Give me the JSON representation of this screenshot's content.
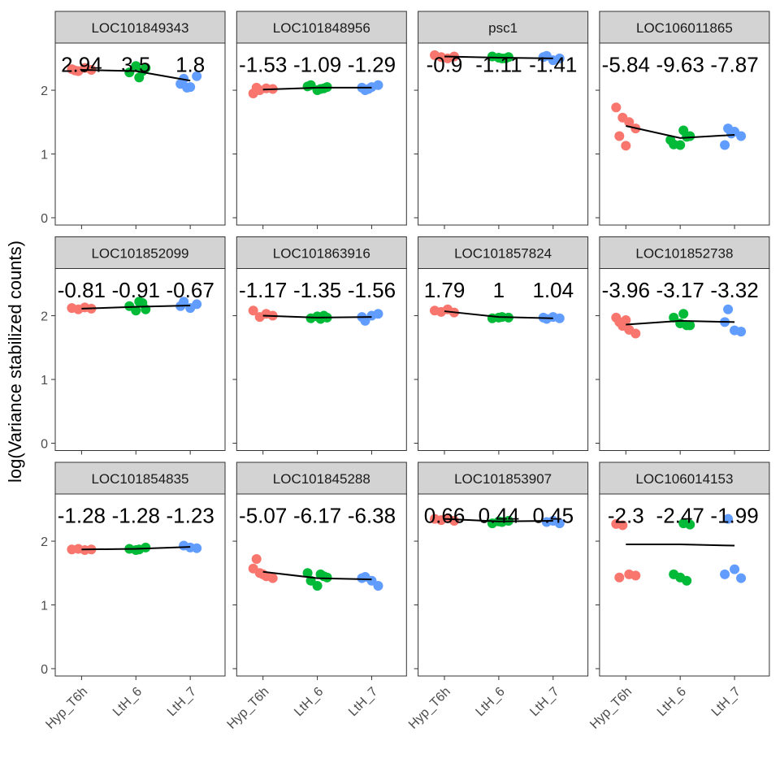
{
  "y_label": "log(Variance stabilized counts)",
  "categories": [
    "Hyp_T6h",
    "LtH_6",
    "LtH_7"
  ],
  "colors": [
    "#F8766D",
    "#00BA38",
    "#619CFF"
  ],
  "ylim": [
    -0.115,
    2.74
  ],
  "yticks": [
    0,
    1,
    2
  ],
  "chart_data": [
    {
      "type": "strip",
      "title": "LOC101849343",
      "annotations": [
        2.94,
        3.5,
        1.8
      ],
      "groups": [
        [
          2.33,
          2.3,
          2.35,
          2.32,
          2.31
        ],
        [
          2.2,
          2.35,
          2.28,
          2.38,
          2.3
        ],
        [
          2.18,
          2.05,
          2.22,
          2.1,
          2.04
        ]
      ],
      "mean": [
        2.32,
        2.3,
        2.15
      ]
    },
    {
      "type": "strip",
      "title": "LOC101848956",
      "annotations": [
        -1.53,
        -1.09,
        -1.29
      ],
      "groups": [
        [
          1.95,
          2.0,
          2.03,
          2.02,
          2.04
        ],
        [
          2.02,
          2.05,
          2.08,
          2.0,
          2.03,
          2.06
        ],
        [
          2.0,
          2.05,
          2.08,
          2.04,
          2.02
        ]
      ],
      "mean": [
        2.01,
        2.04,
        2.04
      ]
    },
    {
      "type": "strip",
      "title": "psc1",
      "annotations": [
        -0.9,
        -1.11,
        -1.41
      ],
      "groups": [
        [
          2.55,
          2.52,
          2.5,
          2.53
        ],
        [
          2.5,
          2.52,
          2.53,
          2.51,
          2.5
        ],
        [
          2.54,
          2.47,
          2.5,
          2.52
        ]
      ],
      "mean": [
        2.53,
        2.51,
        2.5
      ]
    },
    {
      "type": "strip",
      "title": "LOC106011865",
      "annotations": [
        -5.84,
        -9.63,
        -7.87
      ],
      "groups": [
        [
          1.73,
          1.57,
          1.5,
          1.4,
          1.28,
          1.13
        ],
        [
          1.37,
          1.28,
          1.15,
          1.14,
          1.27,
          1.22
        ],
        [
          1.4,
          1.35,
          1.28,
          1.14,
          1.32
        ]
      ],
      "mean": [
        1.44,
        1.25,
        1.3
      ]
    },
    {
      "type": "strip",
      "title": "LOC101852099",
      "annotations": [
        -0.81,
        -0.91,
        -0.67
      ],
      "groups": [
        [
          2.12,
          2.1,
          2.13,
          2.11
        ],
        [
          2.22,
          2.1,
          2.15,
          2.08,
          2.2
        ],
        [
          2.22,
          2.12,
          2.18,
          2.15
        ]
      ],
      "mean": [
        2.11,
        2.14,
        2.16
      ]
    },
    {
      "type": "strip",
      "title": "LOC101863916",
      "annotations": [
        -1.17,
        -1.35,
        -1.56
      ],
      "groups": [
        [
          2.08,
          1.98,
          2.03,
          2.0
        ],
        [
          1.95,
          1.97,
          1.96,
          1.99,
          2.0
        ],
        [
          1.92,
          2.0,
          2.03,
          1.98
        ]
      ],
      "mean": [
        2.0,
        1.97,
        1.98
      ]
    },
    {
      "type": "strip",
      "title": "LOC101857824",
      "annotations": [
        1.79,
        1,
        1.04
      ],
      "groups": [
        [
          2.08,
          2.06,
          2.1,
          2.05
        ],
        [
          1.98,
          1.97,
          1.96,
          1.97
        ],
        [
          1.95,
          1.98,
          1.96,
          1.97
        ]
      ],
      "mean": [
        2.07,
        1.98,
        1.96
      ]
    },
    {
      "type": "strip",
      "title": "LOC101852738",
      "annotations": [
        -3.96,
        -3.17,
        -3.32
      ],
      "groups": [
        [
          1.97,
          1.84,
          1.78,
          1.72,
          1.9,
          1.93
        ],
        [
          2.03,
          1.85,
          1.97,
          1.88,
          1.85
        ],
        [
          2.1,
          1.77,
          1.75,
          1.9
        ]
      ],
      "mean": [
        1.86,
        1.92,
        1.9
      ]
    },
    {
      "type": "strip",
      "title": "LOC101854835",
      "annotations": [
        -1.28,
        -1.28,
        -1.23
      ],
      "groups": [
        [
          1.87,
          1.88,
          1.86,
          1.87
        ],
        [
          1.87,
          1.9,
          1.88,
          1.86
        ],
        [
          1.93,
          1.9,
          1.89
        ]
      ],
      "mean": [
        1.87,
        1.88,
        1.91
      ]
    },
    {
      "type": "strip",
      "title": "LOC101845288",
      "annotations": [
        -5.07,
        -6.17,
        -6.38
      ],
      "groups": [
        [
          1.57,
          1.5,
          1.45,
          1.42,
          1.72,
          1.48
        ],
        [
          1.48,
          1.43,
          1.38,
          1.3,
          1.45,
          1.5
        ],
        [
          1.44,
          1.38,
          1.3,
          1.42
        ]
      ],
      "mean": [
        1.52,
        1.42,
        1.4
      ]
    },
    {
      "type": "strip",
      "title": "LOC101853907",
      "annotations": [
        0.66,
        0.44,
        0.45
      ],
      "groups": [
        [
          2.35,
          2.33,
          2.36,
          2.32
        ],
        [
          2.3,
          2.32,
          2.28,
          2.31
        ],
        [
          2.3,
          2.32,
          2.28
        ]
      ],
      "mean": [
        2.35,
        2.31,
        2.32
      ]
    },
    {
      "type": "strip",
      "title": "LOC106014153",
      "annotations": [
        -2.3,
        -2.47,
        -1.99
      ],
      "groups": [
        [
          2.27,
          2.25,
          1.48,
          1.46,
          1.43
        ],
        [
          2.28,
          2.26,
          1.48,
          1.43,
          1.38
        ],
        [
          2.35,
          1.56,
          1.42,
          1.48
        ]
      ],
      "mean": [
        1.95,
        1.95,
        1.93
      ]
    }
  ]
}
